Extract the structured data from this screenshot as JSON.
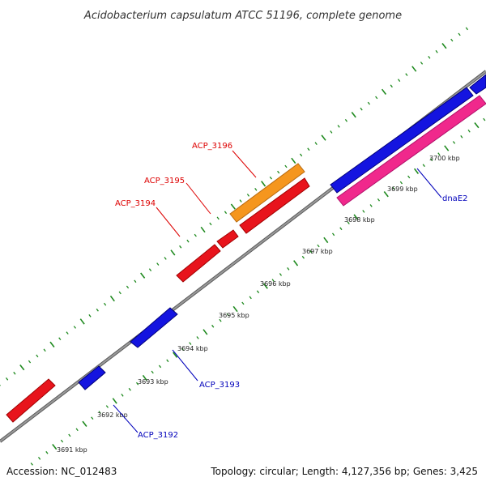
{
  "title": "Acidobacterium capsulatum ATCC 51196, complete genome",
  "footer": {
    "accession": "Accession: NC_012483",
    "topology": "Topology: circular; Length: 4,127,356 bp; Genes: 3,425"
  },
  "colors": {
    "backbone": "#8c8c8c",
    "tick": "#1f8a1f",
    "forward_gene": "#e8141c",
    "reverse_gene": "#1414e0",
    "highlight_gene": "#f5961e",
    "feature": "#f0288c",
    "forward_label": "#dd0000",
    "reverse_label": "#0000bb"
  },
  "tick_labels": [
    "3691 kbp",
    "3692 kbp",
    "3693 kbp",
    "3694 kbp",
    "3695 kbp",
    "3696 kbp",
    "3697 kbp",
    "3698 kbp",
    "3699 kbp",
    "3700 kbp"
  ],
  "gene_labels": [
    {
      "text": "ACP_3196",
      "strand": "forward"
    },
    {
      "text": "ACP_3195",
      "strand": "forward"
    },
    {
      "text": "ACP_3194",
      "strand": "forward"
    },
    {
      "text": "ACP_3193",
      "strand": "reverse"
    },
    {
      "text": "ACP_3192",
      "strand": "reverse"
    },
    {
      "text": "dnaE2",
      "strand": "reverse"
    }
  ]
}
